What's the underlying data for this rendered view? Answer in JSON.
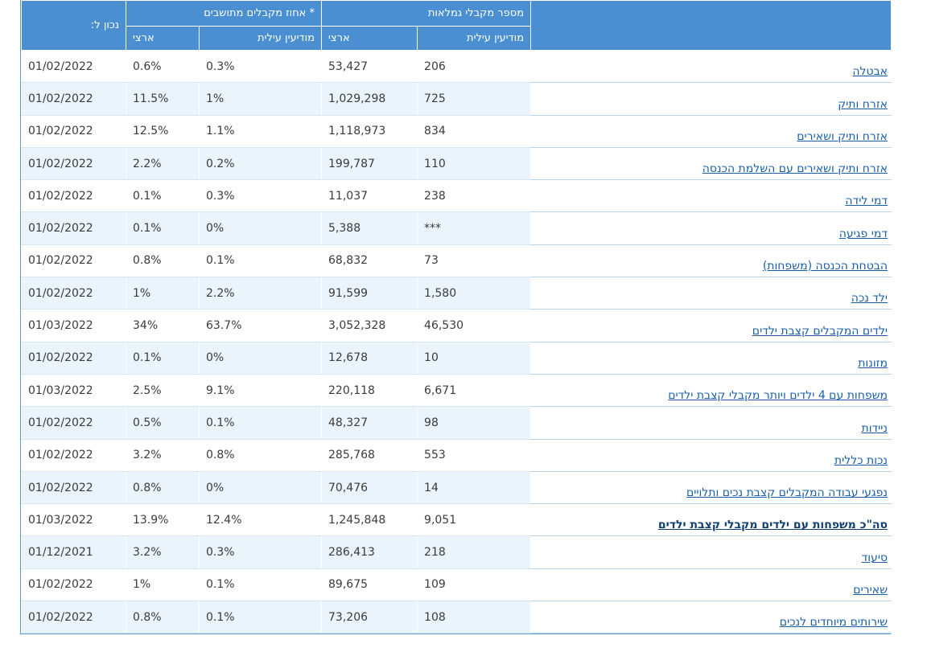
{
  "header": {
    "group_recipients": "מספר מקבלי גמלאות",
    "group_percent": "* אחוז מקבלים מתושבים",
    "as_of": "נכון ל:",
    "sub_modiin_1": "מודיעין עילית",
    "sub_national_1": "ארצי",
    "sub_modiin_2": "מודיעין עילית",
    "sub_national_2": "ארצי"
  },
  "rows": [
    {
      "name": "אבטלה",
      "modiin": "206",
      "national": "53,427",
      "pct_modiin": "0.3%",
      "pct_national": "0.6%",
      "date": "01/02/2022"
    },
    {
      "name": "אזרח ותיק",
      "modiin": "725",
      "national": "1,029,298",
      "pct_modiin": "1%",
      "pct_national": "11.5%",
      "date": "01/02/2022"
    },
    {
      "name": "אזרח ותיק ושאירים",
      "modiin": "834",
      "national": "1,118,973",
      "pct_modiin": "1.1%",
      "pct_national": "12.5%",
      "date": "01/02/2022"
    },
    {
      "name": "אזרח ותיק ושאירים עם השלמת הכנסה",
      "modiin": "110",
      "national": "199,787",
      "pct_modiin": "0.2%",
      "pct_national": "2.2%",
      "date": "01/02/2022"
    },
    {
      "name": "דמי לידה",
      "modiin": "238",
      "national": "11,037",
      "pct_modiin": "0.3%",
      "pct_national": "0.1%",
      "date": "01/02/2022"
    },
    {
      "name": "דמי פגיעה",
      "modiin": "***",
      "national": "5,388",
      "pct_modiin": "0%",
      "pct_national": "0.1%",
      "date": "01/02/2022"
    },
    {
      "name": "הבטחת הכנסה (משפחות)",
      "modiin": "73",
      "national": "68,832",
      "pct_modiin": "0.1%",
      "pct_national": "0.8%",
      "date": "01/02/2022"
    },
    {
      "name": "ילד נכה",
      "modiin": "1,580",
      "national": "91,599",
      "pct_modiin": "2.2%",
      "pct_national": "1%",
      "date": "01/02/2022"
    },
    {
      "name": "ילדים המקבלים קצבת ילדים",
      "modiin": "46,530",
      "national": "3,052,328",
      "pct_modiin": "63.7%",
      "pct_national": "34%",
      "date": "01/03/2022"
    },
    {
      "name": "מזונות",
      "modiin": "10",
      "national": "12,678",
      "pct_modiin": "0%",
      "pct_national": "0.1%",
      "date": "01/02/2022"
    },
    {
      "name": "משפחות עם 4 ילדים ויותר מקבלי קצבת ילדים",
      "modiin": "6,671",
      "national": "220,118",
      "pct_modiin": "9.1%",
      "pct_national": "2.5%",
      "date": "01/03/2022"
    },
    {
      "name": "ניידות",
      "modiin": "98",
      "national": "48,327",
      "pct_modiin": "0.1%",
      "pct_national": "0.5%",
      "date": "01/02/2022"
    },
    {
      "name": "נכות כללית",
      "modiin": "553",
      "national": "285,768",
      "pct_modiin": "0.8%",
      "pct_national": "3.2%",
      "date": "01/02/2022"
    },
    {
      "name": "נפגעי עבודה המקבלים קצבת נכים ותלויים",
      "modiin": "14",
      "national": "70,476",
      "pct_modiin": "0%",
      "pct_national": "0.8%",
      "date": "01/02/2022"
    },
    {
      "name": "סה\"כ משפחות עם ילדים מקבלי קצבת ילדים",
      "modiin": "9,051",
      "national": "1,245,848",
      "pct_modiin": "12.4%",
      "pct_national": "13.9%",
      "date": "01/03/2022",
      "bold": true
    },
    {
      "name": "סיעוד",
      "modiin": "218",
      "national": "286,413",
      "pct_modiin": "0.3%",
      "pct_national": "3.2%",
      "date": "01/12/2021"
    },
    {
      "name": "שאירים",
      "modiin": "109",
      "national": "89,675",
      "pct_modiin": "0.1%",
      "pct_national": "1%",
      "date": "01/02/2022"
    },
    {
      "name": "שירותים מיוחדים לנכים",
      "modiin": "108",
      "national": "73,206",
      "pct_modiin": "0.1%",
      "pct_national": "0.8%",
      "date": "01/02/2022"
    }
  ]
}
